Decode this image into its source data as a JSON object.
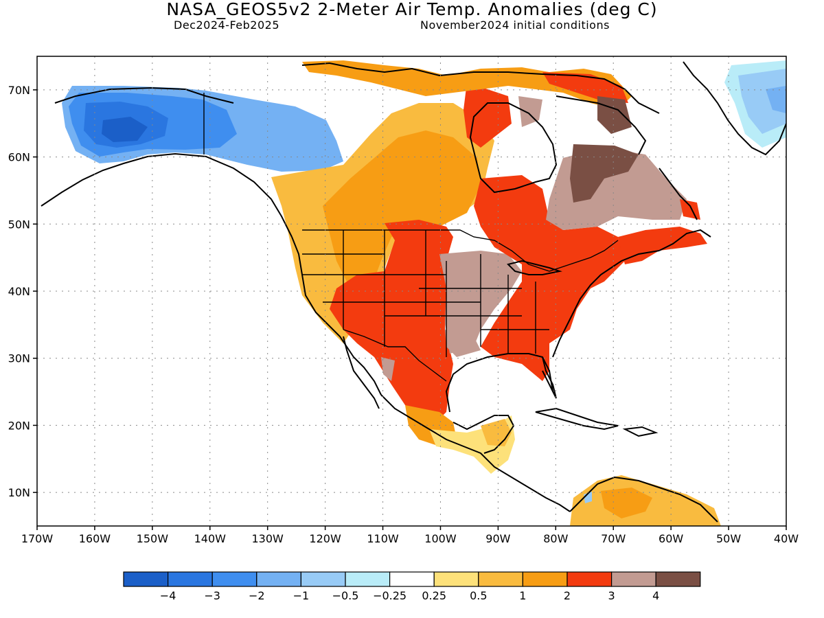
{
  "header": {
    "title": "NASA_GEOS5v2 2-Meter Air Temp. Anomalies (deg C)",
    "period": "Dec2024-Feb2025",
    "init": "November2024 initial conditions"
  },
  "axes": {
    "lat_labels": [
      "70N",
      "60N",
      "50N",
      "40N",
      "30N",
      "20N",
      "10N"
    ],
    "lat_values": [
      70,
      60,
      50,
      40,
      30,
      20,
      10
    ],
    "lon_labels": [
      "170W",
      "160W",
      "150W",
      "140W",
      "130W",
      "120W",
      "110W",
      "100W",
      "90W",
      "80W",
      "70W",
      "60W",
      "50W",
      "40W"
    ],
    "lon_values": [
      -170,
      -160,
      -150,
      -140,
      -130,
      -120,
      -110,
      -100,
      -90,
      -80,
      -70,
      -60,
      -50,
      -40
    ],
    "lon_range": [
      -170,
      -40
    ],
    "lat_range": [
      5,
      75
    ],
    "grid": "dotted"
  },
  "colorbar": {
    "labels": [
      "-4",
      "-3",
      "-2",
      "-1",
      "-0.5",
      "-0.25",
      "0.25",
      "0.5",
      "1",
      "2",
      "3",
      "4"
    ],
    "colors": [
      "#1b5fc8",
      "#2a76e0",
      "#3f8eef",
      "#74b1f3",
      "#98cbf6",
      "#b9ecf8",
      "#ffffff",
      "#fde17a",
      "#f9bb3f",
      "#f79d14",
      "#f33b0f",
      "#c29b92",
      "#7a4f44"
    ]
  },
  "anomaly_regions": [
    {
      "name": "alaska-cold",
      "anomaly": "-4 to -1",
      "color": "#2a76e0"
    },
    {
      "name": "canada-arctic-cold",
      "anomaly": "-2 to -0.5",
      "color": "#74b1f3"
    },
    {
      "name": "greenland-cold",
      "anomaly": "-2 to -0.25",
      "color": "#98cbf6"
    },
    {
      "name": "western-canada-warm",
      "anomaly": "0.5 to 2",
      "color": "#f9bb3f"
    },
    {
      "name": "us-southwest-warm",
      "anomaly": "2 to 3",
      "color": "#f33b0f"
    },
    {
      "name": "central-us-warm",
      "anomaly": "3 to 4",
      "color": "#c29b92"
    },
    {
      "name": "eastern-us-warm",
      "anomaly": "2 to 3",
      "color": "#f33b0f"
    },
    {
      "name": "quebec-warm",
      "anomaly": "3 to above 4",
      "color": "#7a4f44"
    },
    {
      "name": "mexico-warm",
      "anomaly": "1 to 3",
      "color": "#f33b0f"
    },
    {
      "name": "caribbean-south-america-warm",
      "anomaly": "0.25 to 1",
      "color": "#f9bb3f"
    }
  ]
}
